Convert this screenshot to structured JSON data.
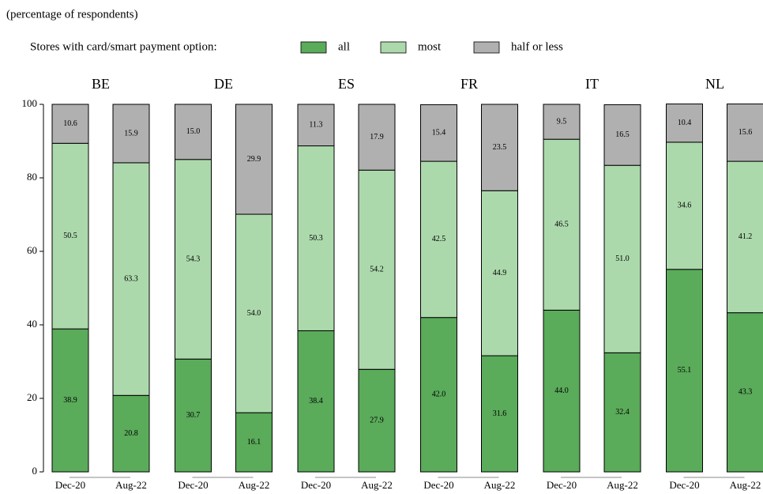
{
  "chart_data": {
    "type": "bar",
    "stacked": true,
    "subtitle": "(percentage of respondents)",
    "legend_title": "Stores with card/smart payment option:",
    "groups": [
      "BE",
      "DE",
      "ES",
      "FR",
      "IT",
      "NL"
    ],
    "categories": [
      "Dec-20",
      "Aug-22",
      "Dec-20",
      "Aug-22",
      "Dec-20",
      "Aug-22",
      "Dec-20",
      "Aug-22",
      "Dec-20",
      "Aug-22",
      "Dec-20",
      "Aug-22"
    ],
    "series": [
      {
        "name": "all",
        "color": "#5aab5a",
        "values": [
          38.9,
          20.8,
          30.7,
          16.1,
          38.4,
          27.9,
          42.0,
          31.6,
          44.0,
          32.4,
          55.1,
          43.3
        ],
        "value_labels": [
          "38.9",
          "20.8",
          "30.7",
          "16.1",
          "38.4",
          "27.9",
          "42.0",
          "31.6",
          "44.0",
          "32.4",
          "55.1",
          "43.3"
        ]
      },
      {
        "name": "most",
        "color": "#acd9ac",
        "values": [
          50.5,
          63.3,
          54.3,
          54.0,
          50.3,
          54.2,
          42.5,
          44.9,
          46.5,
          51.0,
          34.6,
          41.2
        ],
        "value_labels": [
          "50.5",
          "63.3",
          "54.3",
          "54.0",
          "50.3",
          "54.2",
          "42.5",
          "44.9",
          "46.5",
          "51.0",
          "34.6",
          "41.2"
        ]
      },
      {
        "name": "half or less",
        "color": "#b0b0b0",
        "values": [
          10.6,
          15.9,
          15.0,
          29.9,
          11.3,
          17.9,
          15.4,
          23.5,
          9.5,
          16.5,
          10.4,
          15.6
        ],
        "value_labels": [
          "10.6",
          "15.9",
          "15.0",
          "29.9",
          "11.3",
          "17.9",
          "15.4",
          "23.5",
          "9.5",
          "16.5",
          "10.4",
          "15.6"
        ]
      }
    ],
    "ylim": [
      0,
      100
    ],
    "yticks": [
      0,
      20,
      40,
      60,
      80,
      100
    ]
  }
}
